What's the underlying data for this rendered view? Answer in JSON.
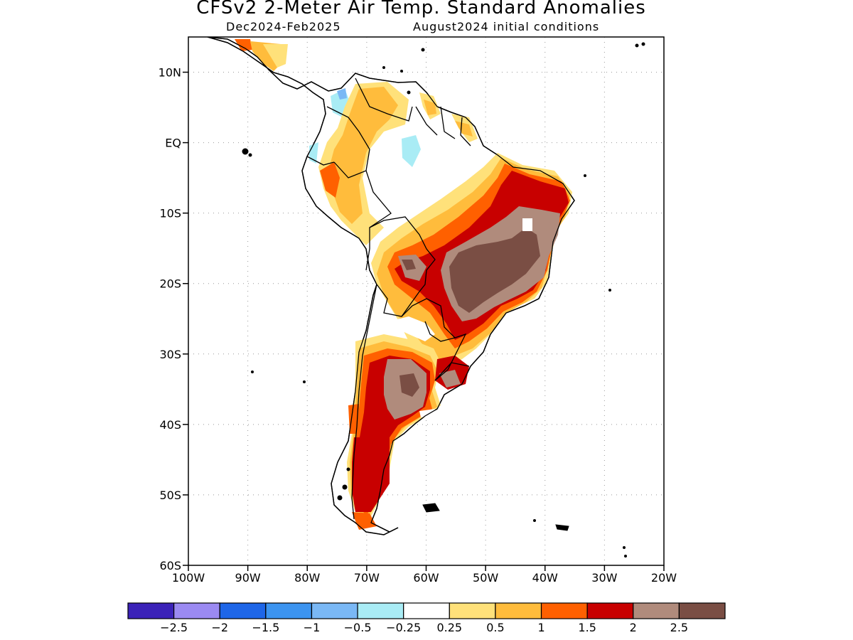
{
  "title": "CFSv2 2-Meter Air Temp. Standard Anomalies",
  "subtitle_left": "Dec2024-Feb2025",
  "subtitle_right": "August2024 initial conditions",
  "map": {
    "lon_range": [
      -100,
      -20
    ],
    "lat_range": [
      -60,
      15
    ],
    "lat_ticks": [
      {
        "value": 10,
        "label": "10N"
      },
      {
        "value": 0,
        "label": "EQ"
      },
      {
        "value": -10,
        "label": "10S"
      },
      {
        "value": -20,
        "label": "20S"
      },
      {
        "value": -30,
        "label": "30S"
      },
      {
        "value": -40,
        "label": "40S"
      },
      {
        "value": -50,
        "label": "50S"
      },
      {
        "value": -60,
        "label": "60S"
      }
    ],
    "lon_ticks": [
      {
        "value": -100,
        "label": "100W"
      },
      {
        "value": -90,
        "label": "90W"
      },
      {
        "value": -80,
        "label": "80W"
      },
      {
        "value": -70,
        "label": "70W"
      },
      {
        "value": -60,
        "label": "60W"
      },
      {
        "value": -50,
        "label": "50W"
      },
      {
        "value": -40,
        "label": "40W"
      },
      {
        "value": -30,
        "label": "30W"
      },
      {
        "value": -20,
        "label": "20W"
      }
    ],
    "grid": true,
    "colors": {
      "c05": "#ffe17a",
      "c1": "#ffbc3c",
      "c15": "#ff6000",
      "c2": "#c80000",
      "c25": "#b08b7c",
      "c3": "#7a4e44",
      "cool1": "#a9ecf5",
      "cool2": "#7ab8f5"
    }
  },
  "colorbar": {
    "colors": [
      "#3b22b8",
      "#9b8af2",
      "#1e66e8",
      "#3c94f0",
      "#7ab8f5",
      "#a9ecf5",
      "#ffffff",
      "#ffe17a",
      "#ffbc3c",
      "#ff6000",
      "#c80000",
      "#b08b7c",
      "#7a4e44"
    ],
    "labels": [
      "-2.5",
      "-2",
      "-1.5",
      "-1",
      "-0.5",
      "-0.25",
      "0.25",
      "0.5",
      "1",
      "1.5",
      "2",
      "2.5"
    ]
  }
}
